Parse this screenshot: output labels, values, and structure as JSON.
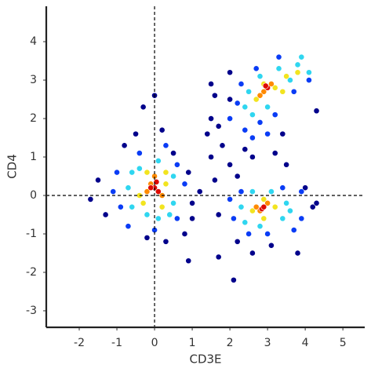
{
  "chart_data": {
    "type": "scatter",
    "xlabel": "CD3E",
    "ylabel": "CD4",
    "xlim": [
      -2.875,
      5.58
    ],
    "ylim": [
      -3.43,
      4.92
    ],
    "xticks": [
      -2,
      -1,
      0,
      1,
      2,
      3,
      4,
      5
    ],
    "yticks": [
      -3,
      -2,
      -1,
      0,
      1,
      2,
      3,
      4
    ],
    "vlines": [
      0
    ],
    "hlines": [
      0
    ],
    "series": [
      {
        "color": "#00008b",
        "x": [
          -1.7,
          -1.5,
          -1.3,
          -0.8,
          -0.5,
          0,
          -0.3,
          0.2,
          0.5,
          0.9,
          1.2,
          1.0,
          0.3,
          -0.2,
          0.8,
          0.9,
          1.7,
          1.6,
          1.5,
          1.4,
          1.5,
          1.6,
          1.5,
          2.0,
          1.8,
          2.0,
          2.2,
          2.4,
          2.6,
          3.4,
          3.2,
          3.5,
          4.3,
          2.2,
          2.6,
          3.1,
          3.8,
          2.1,
          1.7,
          4.2,
          4.3,
          4.0,
          1.0,
          2.0,
          1.7
        ],
        "y": [
          -0.1,
          0.4,
          -0.5,
          1.3,
          1.6,
          2.6,
          2.3,
          1.7,
          1.1,
          0.6,
          0.1,
          -0.6,
          -1.2,
          -1.1,
          -1.0,
          -1.7,
          -0.5,
          0.4,
          1.0,
          1.6,
          2.0,
          2.6,
          2.9,
          3.2,
          1.3,
          0.8,
          0.5,
          1.2,
          1.0,
          1.6,
          1.1,
          0.8,
          2.2,
          -1.2,
          -1.5,
          -1.3,
          -1.5,
          -2.2,
          -1.6,
          -0.3,
          -0.2,
          0.2,
          -0.2,
          2.5,
          1.8
        ]
      },
      {
        "color": "#0a3cf5",
        "x": [
          -1.0,
          -0.9,
          -0.7,
          0.6,
          0.8,
          0.6,
          -0.4,
          0.3,
          0.0,
          -1.1,
          2.0,
          2.1,
          2.3,
          3.4,
          3.9,
          3.7,
          2.5,
          3.0,
          3.9,
          2.0,
          2.2,
          2.4,
          2.8,
          3.2,
          3.7,
          4.1,
          2.3,
          2.7,
          3.3,
          3.0,
          2.6
        ],
        "y": [
          0.6,
          -0.3,
          -0.8,
          0.8,
          0.3,
          -0.6,
          1.1,
          1.3,
          -0.9,
          0.1,
          -0.1,
          -0.6,
          0.1,
          0.2,
          -0.6,
          -0.9,
          -1.0,
          -1.0,
          0.1,
          2.0,
          2.4,
          1.7,
          1.9,
          2.1,
          2.7,
          3.0,
          2.9,
          3.3,
          3.6,
          1.6,
          1.5
        ]
      },
      {
        "color": "#2fd6f0",
        "x": [
          -0.7,
          -0.6,
          -0.4,
          0.5,
          0.5,
          0.1,
          -0.2,
          0.1,
          -0.6,
          0.4,
          2.3,
          2.4,
          3.5,
          3.4,
          2.8,
          2.6,
          3.1,
          3.6,
          2.4,
          2.6,
          3.3,
          3.8,
          4.1,
          3.0,
          2.5,
          3.6,
          2.8,
          3.9
        ],
        "y": [
          0.2,
          -0.3,
          0.7,
          0.5,
          -0.2,
          -0.6,
          -0.5,
          0.9,
          0.6,
          -0.5,
          -0.3,
          -0.7,
          -0.2,
          -0.6,
          -0.8,
          0.1,
          0.1,
          -0.4,
          2.3,
          2.1,
          3.3,
          3.4,
          3.2,
          2.3,
          2.7,
          3.0,
          3.1,
          3.6
        ]
      },
      {
        "color": "#f2e41f",
        "x": [
          -0.4,
          0.3,
          0.2,
          -0.2,
          -0.3,
          0.3,
          2.6,
          3.2,
          2.9,
          2.9,
          2.7,
          3.2,
          3.5,
          3.8,
          2.9,
          3.4
        ],
        "y": [
          0.0,
          0.3,
          -0.3,
          0.6,
          -0.2,
          0.6,
          -0.4,
          -0.3,
          -0.6,
          -0.1,
          2.5,
          2.8,
          3.1,
          3.2,
          2.9,
          2.7
        ]
      },
      {
        "color": "#ff8a00",
        "x": [
          -0.1,
          0.2,
          0.0,
          -0.2,
          2.8,
          3.0,
          2.7,
          2.9,
          3.1,
          2.8
        ],
        "y": [
          0.3,
          0.0,
          0.5,
          0.1,
          -0.4,
          -0.2,
          -0.3,
          2.7,
          2.9,
          2.6
        ]
      },
      {
        "color": "#dd0a00",
        "x": [
          0.0,
          0.1,
          -0.1,
          0.05,
          2.85,
          2.9,
          3.0,
          2.95
        ],
        "y": [
          0.2,
          0.1,
          0.2,
          0.35,
          -0.35,
          -0.3,
          2.8,
          2.85
        ]
      }
    ]
  }
}
